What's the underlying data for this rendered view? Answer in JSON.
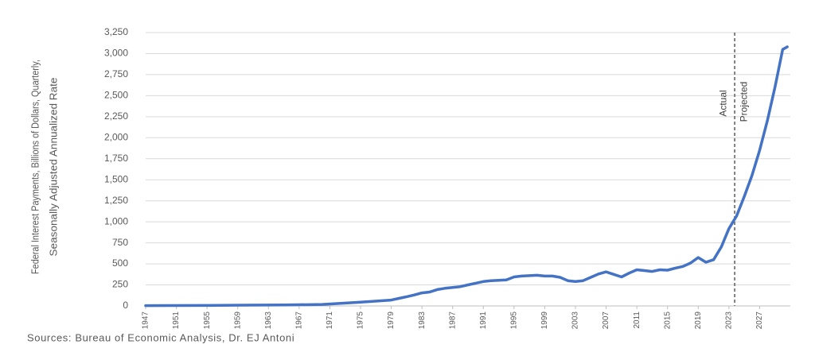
{
  "chart_data": {
    "type": "line",
    "y_label_lines": [
      "Federal Interest Payments, Billions of Dollars, Quarterly,",
      "Seasonally Adjusted Annualized Rate"
    ],
    "source": "Sources: Bureau of Economic Analysis, Dr. EJ Antoni",
    "x": [
      1947,
      1950,
      1955,
      1960,
      1965,
      1970,
      1975,
      1979,
      1980,
      1981,
      1982,
      1983,
      1984,
      1985,
      1986,
      1987,
      1988,
      1989,
      1990,
      1991,
      1992,
      1993,
      1994,
      1995,
      1996,
      1997,
      1998,
      1999,
      2000,
      2001,
      2002,
      2003,
      2004,
      2005,
      2006,
      2007,
      2008,
      2009,
      2010,
      2011,
      2012,
      2013,
      2014,
      2015,
      2016,
      2017,
      2018,
      2019,
      2020,
      2021,
      2022,
      2023,
      2024,
      2025,
      2026,
      2027,
      2028,
      2029,
      2030,
      2030.6
    ],
    "values": [
      4,
      5,
      6,
      9,
      11,
      18,
      45,
      70,
      90,
      110,
      130,
      155,
      165,
      195,
      210,
      220,
      230,
      250,
      270,
      290,
      300,
      305,
      310,
      345,
      355,
      360,
      365,
      355,
      355,
      340,
      300,
      290,
      300,
      340,
      380,
      405,
      375,
      345,
      390,
      430,
      420,
      410,
      430,
      425,
      450,
      470,
      510,
      575,
      520,
      550,
      700,
      920,
      1070,
      1300,
      1550,
      1850,
      2200,
      2600,
      3050,
      3080
    ],
    "color": "#4472c4",
    "xlim": [
      1947,
      2031
    ],
    "xticks": [
      1947,
      1951,
      1955,
      1959,
      1963,
      1967,
      1971,
      1975,
      1979,
      1983,
      1987,
      1991,
      1995,
      1999,
      2003,
      2007,
      2011,
      2015,
      2019,
      2023,
      2027
    ],
    "ylim": [
      0,
      3250
    ],
    "yticks": [
      0,
      250,
      500,
      750,
      {
        "value": 1000,
        "label": "1,000"
      },
      {
        "value": 1250,
        "label": "1,250"
      },
      {
        "value": 1500,
        "label": "1,500"
      },
      {
        "value": 1750,
        "label": "1,750"
      },
      {
        "value": 2000,
        "label": "2,000"
      },
      {
        "value": 2250,
        "label": "2,250"
      },
      {
        "value": 2500,
        "label": "2,500"
      },
      {
        "value": 2750,
        "label": "2,750"
      },
      {
        "value": 3000,
        "label": "3,000"
      },
      {
        "value": 3250,
        "label": "3,250"
      }
    ],
    "grid": true,
    "divider_x": 2023.75,
    "annotations": [
      "Actual",
      "Projected"
    ]
  }
}
